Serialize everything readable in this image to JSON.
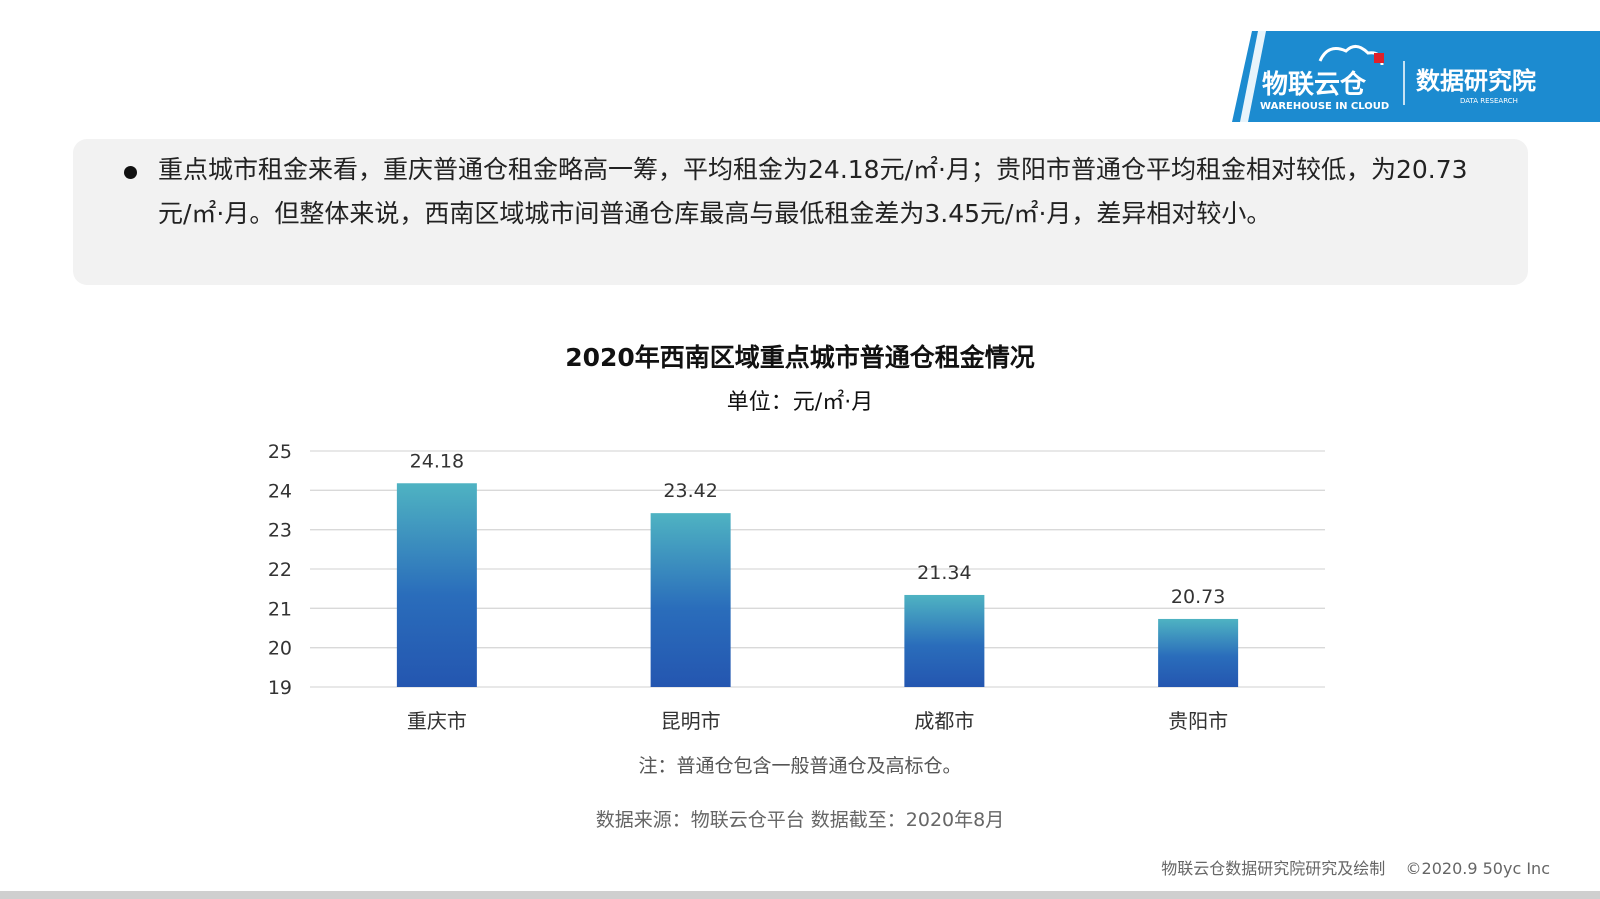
{
  "logo": {
    "brand_cn": "物联云仓",
    "brand_en": "WAREHOUSE IN CLOUD",
    "dept_cn": "数据研究院",
    "dept_en": "DATA RESEARCH"
  },
  "summary": {
    "bullet": "重点城市租金来看，重庆普通仓租金略高一筹，平均租金为24.18元/㎡·月；贵阳市普通仓平均租金相对较低，为20.73元/㎡·月。但整体来说，西南区域城市间普通仓库最高与最低租金差为3.45元/㎡·月，差异相对较小。"
  },
  "chart_data": {
    "type": "bar",
    "title": "2020年西南区域重点城市普通仓租金情况",
    "subtitle": "单位：元/㎡·月",
    "categories": [
      "重庆市",
      "昆明市",
      "成都市",
      "贵阳市"
    ],
    "values": [
      24.18,
      23.42,
      21.34,
      20.73
    ],
    "data_labels": [
      "24.18",
      "23.42",
      "21.34",
      "20.73"
    ],
    "ylim": [
      19,
      25
    ],
    "yticks": [
      19,
      20,
      21,
      22,
      23,
      24,
      25
    ],
    "grid": true,
    "colors": {
      "bar_top": "#4fb3c2",
      "bar_bottom": "#2456b0",
      "grid": "#d9d9d9"
    }
  },
  "note": "注：普通仓包含一般普通仓及高标仓。",
  "source": "数据来源：物联云仓平台 数据截至：2020年8月",
  "footer": "物联云仓数据研究院研究及绘制    ©2020.9 50yc Inc"
}
